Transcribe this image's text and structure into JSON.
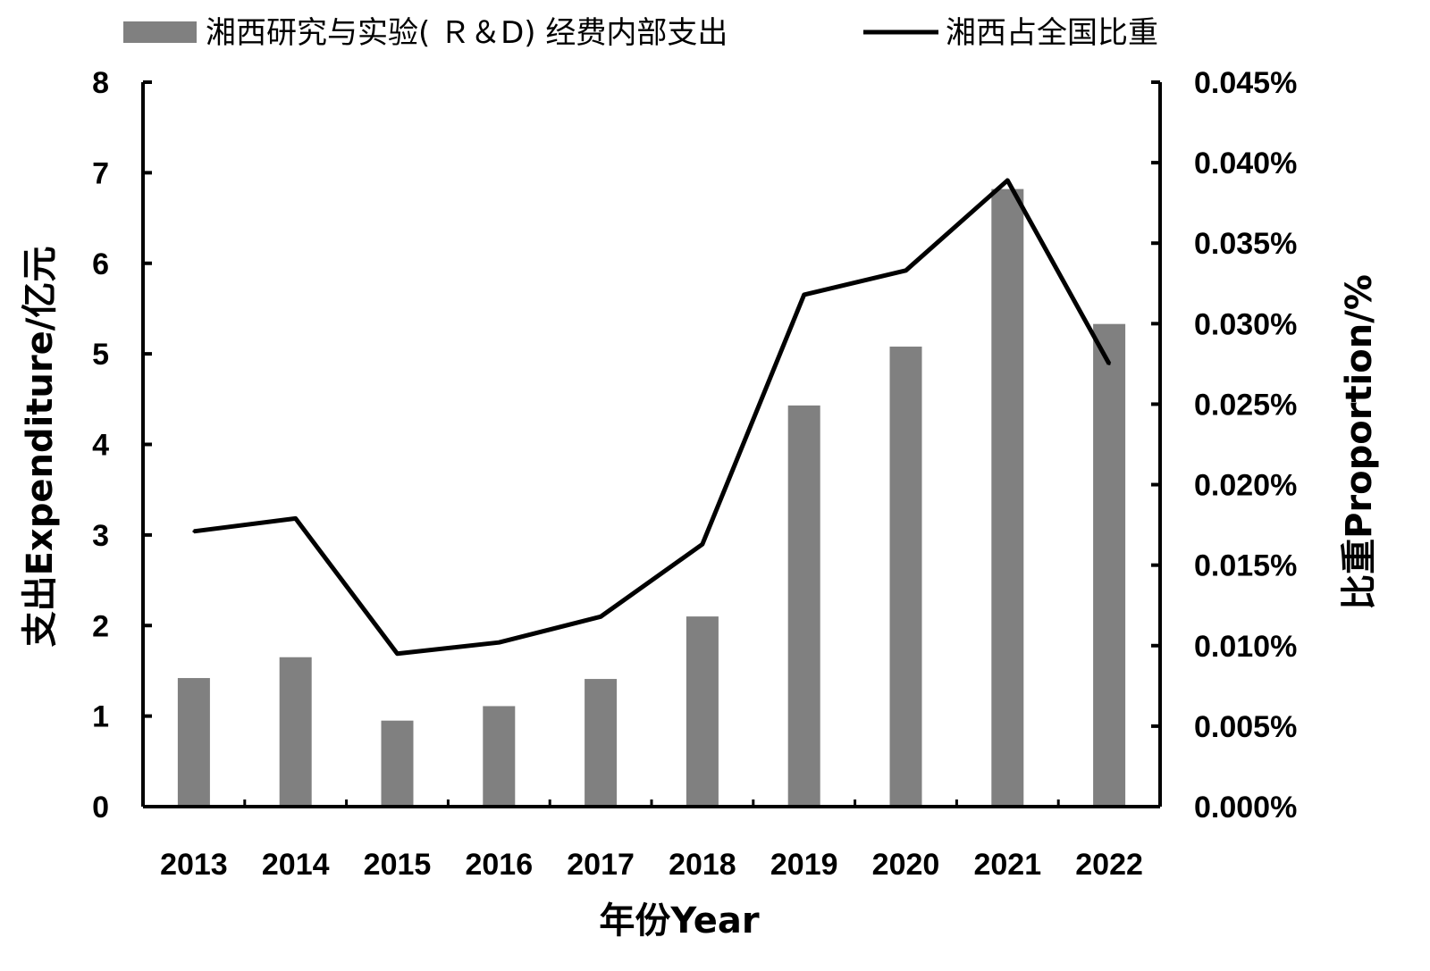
{
  "chart_data": {
    "type": "bar",
    "categories": [
      "2013",
      "2014",
      "2015",
      "2016",
      "2017",
      "2018",
      "2019",
      "2020",
      "2021",
      "2022"
    ],
    "series": [
      {
        "name": "湘西研究与实验( Ｒ＆D) 经费内部支出",
        "type": "bar",
        "axis": "left",
        "color": "#808080",
        "values": [
          1.42,
          1.65,
          0.95,
          1.11,
          1.41,
          2.1,
          4.43,
          5.08,
          6.82,
          5.33
        ]
      },
      {
        "name": "湘西占全国比重",
        "type": "line",
        "axis": "right",
        "color": "#000000",
        "values": [
          0.0171,
          0.0179,
          0.0095,
          0.0102,
          0.0118,
          0.0163,
          0.0318,
          0.0333,
          0.0389,
          0.0275
        ]
      }
    ],
    "title": "",
    "xlabel": "年份Year",
    "ylabel": "支出Expenditure/亿元",
    "y2label": "比重Proportion/%",
    "ylim": [
      0,
      8
    ],
    "y2lim": [
      0,
      0.045
    ],
    "y_ticks": [
      "0",
      "1",
      "2",
      "3",
      "4",
      "5",
      "6",
      "7",
      "8"
    ],
    "y2_ticks": [
      "0.000%",
      "0.005%",
      "0.010%",
      "0.015%",
      "0.020%",
      "0.025%",
      "0.030%",
      "0.035%",
      "0.040%",
      "0.045%"
    ],
    "grid": false,
    "legend_position": "top"
  }
}
